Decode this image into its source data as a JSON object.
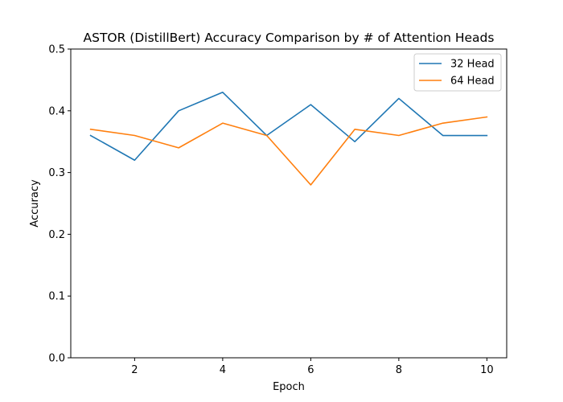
{
  "chart_data": {
    "type": "line",
    "title": "ASTOR (DistillBert) Accuracy Comparison by # of Attention Heads",
    "xlabel": "Epoch",
    "ylabel": "Accuracy",
    "x": [
      1,
      2,
      3,
      4,
      5,
      6,
      7,
      8,
      9,
      10
    ],
    "xlim": [
      0.55,
      10.45
    ],
    "ylim": [
      0,
      0.5
    ],
    "xticks": [
      2,
      4,
      6,
      8,
      10
    ],
    "yticks": [
      0.0,
      0.1,
      0.2,
      0.3,
      0.4,
      0.5
    ],
    "xtick_labels": [
      "2",
      "4",
      "6",
      "8",
      "10"
    ],
    "ytick_labels": [
      "0.0",
      "0.1",
      "0.2",
      "0.3",
      "0.4",
      "0.5"
    ],
    "grid": false,
    "legend_position": "top-right",
    "series": [
      {
        "name": "32 Head",
        "color": "#1f77b4",
        "values": [
          0.36,
          0.32,
          0.4,
          0.43,
          0.36,
          0.41,
          0.35,
          0.42,
          0.36,
          0.36
        ]
      },
      {
        "name": "64 Head",
        "color": "#ff7f0e",
        "values": [
          0.37,
          0.36,
          0.34,
          0.38,
          0.36,
          0.28,
          0.37,
          0.36,
          0.38,
          0.39
        ]
      }
    ]
  }
}
